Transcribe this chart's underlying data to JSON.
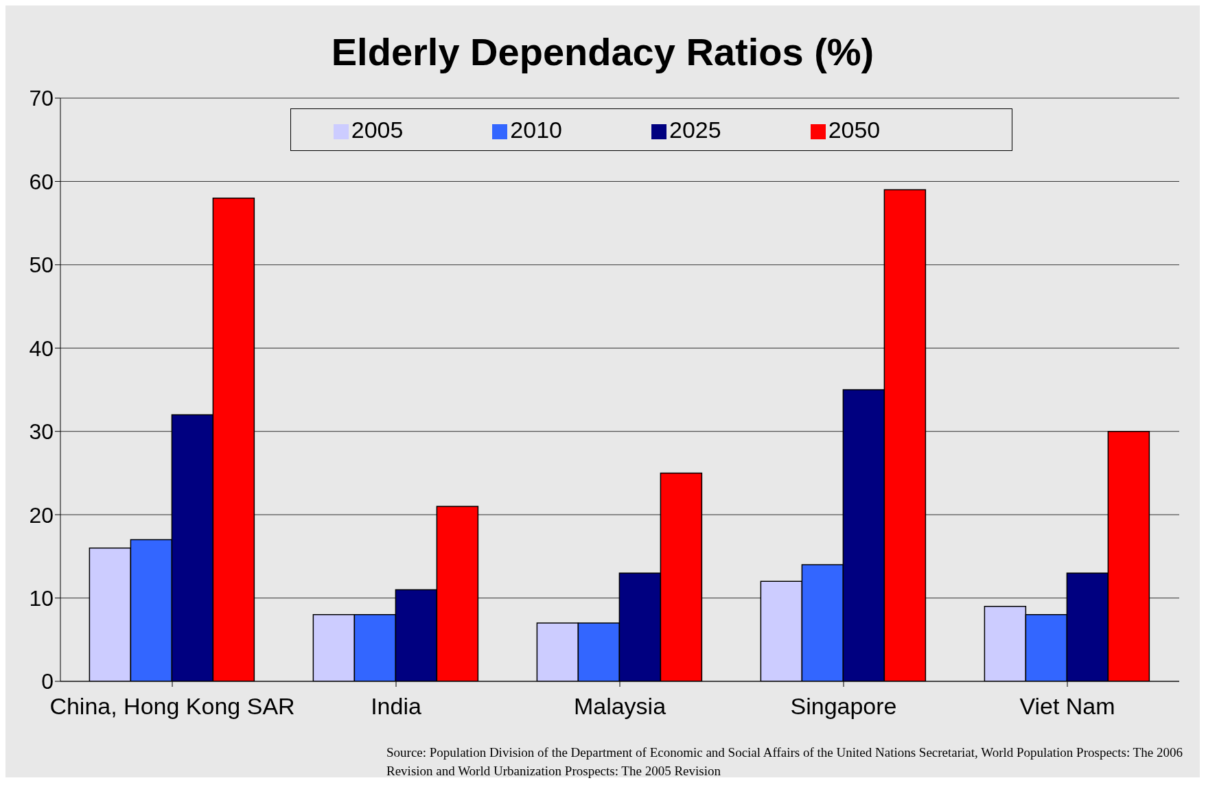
{
  "chart_data": {
    "type": "bar",
    "title": "Elderly Dependacy Ratios (%)",
    "categories": [
      "China, Hong Kong SAR",
      "India",
      "Malaysia",
      "Singapore",
      "Viet Nam"
    ],
    "series": [
      {
        "name": "2005",
        "color": "#ccccff",
        "values": [
          16,
          8,
          7,
          12,
          9
        ]
      },
      {
        "name": "2010",
        "color": "#3366ff",
        "values": [
          17,
          8,
          7,
          14,
          8
        ]
      },
      {
        "name": "2025",
        "color": "#000080",
        "values": [
          32,
          11,
          13,
          35,
          13
        ]
      },
      {
        "name": "2050",
        "color": "#ff0000",
        "values": [
          58,
          21,
          25,
          59,
          30
        ]
      }
    ],
    "ylim": [
      0,
      70
    ],
    "yticks": [
      0,
      10,
      20,
      30,
      40,
      50,
      60,
      70
    ],
    "grid": "y",
    "legend": "top",
    "annotations": [
      "Source: Population Division of the Department of Economic and Social Affairs of the United Nations Secretariat, World Population Prospects: The 2006 Revision and World Urbanization Prospects: The 2005 Revision"
    ]
  }
}
